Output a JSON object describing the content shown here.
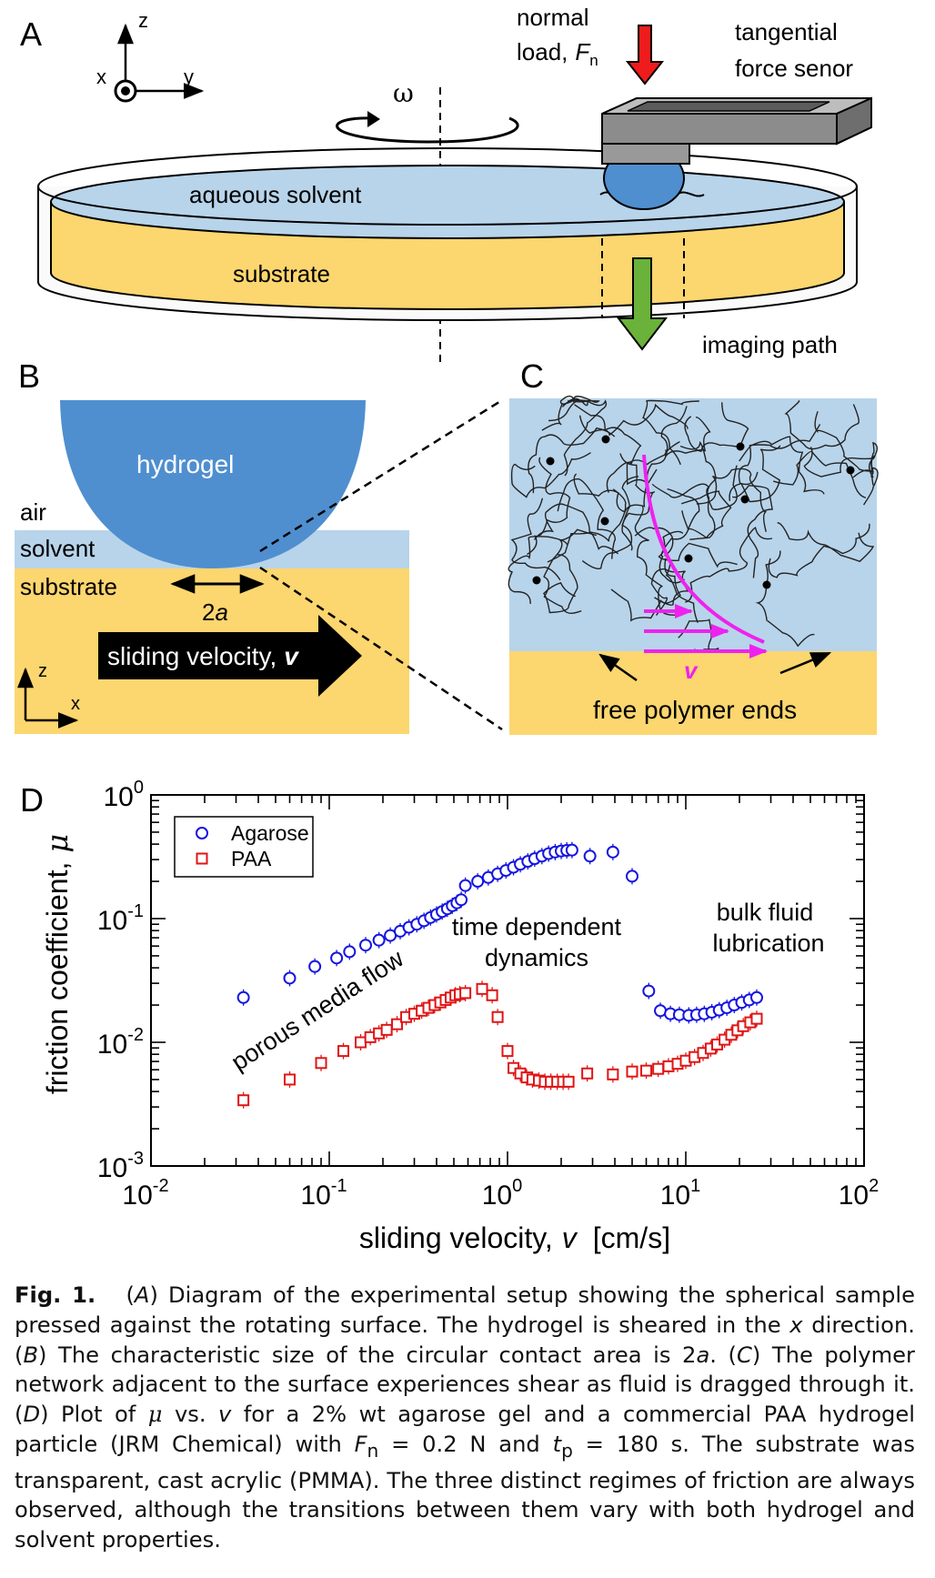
{
  "panels": {
    "a": {
      "letter": "A",
      "axes": {
        "z": "z",
        "x": "x",
        "y": "y"
      },
      "omega": "ω",
      "normal_load": {
        "line1": "normal",
        "line2": "load,",
        "symbol": "F",
        "sub": "n"
      },
      "sensor": {
        "line1": "tangential",
        "line2": "force senor"
      },
      "solvent": "aqueous  solvent",
      "substrate": "substrate",
      "imaging": "imaging  path",
      "colors": {
        "solvent": "#b8d4ea",
        "substrate": "#fcd66f",
        "gel": "#4f8fcf",
        "sensor": "#8c8c8c",
        "load_arrow": "#ee1c1c",
        "imaging_arrow": "#6ab23a"
      }
    },
    "b": {
      "letter": "B",
      "hydrogel": "hydrogel",
      "air": "air",
      "solvent": "solvent",
      "substrate": "substrate",
      "contact": "2",
      "contact_italic": "a",
      "sliding": "sliding velocity,",
      "sliding_symbol": "v",
      "axes": {
        "z": "z",
        "x": "x"
      }
    },
    "c": {
      "letter": "C",
      "velocity": "v",
      "free_ends": "free polymer ends",
      "colors": {
        "flow": "#ee22ee",
        "network": "#222222"
      }
    },
    "d": {
      "letter": "D"
    }
  },
  "chart_data": {
    "type": "scatter",
    "title": "",
    "xlabel": "sliding velocity,",
    "xlabel_symbol": "v",
    "xlabel_unit": "[cm/s]",
    "ylabel": "friction coefficient,",
    "ylabel_symbol": "μ",
    "x_scale": "log",
    "y_scale": "log",
    "xlim": [
      0.01,
      100
    ],
    "ylim": [
      0.001,
      1
    ],
    "x_ticks": [
      {
        "base": "10",
        "exp": "-2"
      },
      {
        "base": "10",
        "exp": "-1"
      },
      {
        "base": "10",
        "exp": "0"
      },
      {
        "base": "10",
        "exp": "1"
      },
      {
        "base": "10",
        "exp": "2"
      }
    ],
    "y_ticks": [
      {
        "base": "10",
        "exp": "-3"
      },
      {
        "base": "10",
        "exp": "-2"
      },
      {
        "base": "10",
        "exp": "-1"
      },
      {
        "base": "10",
        "exp": "0"
      }
    ],
    "grid": false,
    "legend_position": "top-left",
    "annotations": {
      "porous": "porous media flow",
      "time1": "time dependent",
      "time2": "dynamics",
      "bulk1": "bulk fluid",
      "bulk2": "lubrication"
    },
    "series": [
      {
        "name": "Agarose",
        "marker": "circle",
        "color": "#1515e0",
        "points": [
          [
            0.033,
            0.023
          ],
          [
            0.06,
            0.033
          ],
          [
            0.083,
            0.041
          ],
          [
            0.11,
            0.048
          ],
          [
            0.13,
            0.054
          ],
          [
            0.16,
            0.061
          ],
          [
            0.19,
            0.067
          ],
          [
            0.22,
            0.073
          ],
          [
            0.25,
            0.079
          ],
          [
            0.28,
            0.085
          ],
          [
            0.31,
            0.09
          ],
          [
            0.34,
            0.096
          ],
          [
            0.37,
            0.102
          ],
          [
            0.4,
            0.108
          ],
          [
            0.43,
            0.114
          ],
          [
            0.46,
            0.12
          ],
          [
            0.49,
            0.127
          ],
          [
            0.52,
            0.134
          ],
          [
            0.55,
            0.142
          ],
          [
            0.58,
            0.185
          ],
          [
            0.68,
            0.2
          ],
          [
            0.78,
            0.215
          ],
          [
            0.88,
            0.23
          ],
          [
            0.98,
            0.245
          ],
          [
            1.08,
            0.26
          ],
          [
            1.18,
            0.275
          ],
          [
            1.3,
            0.29
          ],
          [
            1.42,
            0.305
          ],
          [
            1.56,
            0.32
          ],
          [
            1.7,
            0.335
          ],
          [
            1.85,
            0.345
          ],
          [
            2.0,
            0.352
          ],
          [
            2.15,
            0.356
          ],
          [
            2.3,
            0.358
          ],
          [
            2.9,
            0.32
          ],
          [
            3.9,
            0.345
          ],
          [
            5.0,
            0.22
          ],
          [
            6.2,
            0.026
          ],
          [
            7.2,
            0.018
          ],
          [
            8.2,
            0.017
          ],
          [
            9.2,
            0.0167
          ],
          [
            10.4,
            0.0165
          ],
          [
            11.5,
            0.0167
          ],
          [
            12.7,
            0.017
          ],
          [
            14.0,
            0.0175
          ],
          [
            15.4,
            0.0182
          ],
          [
            17.0,
            0.019
          ],
          [
            18.7,
            0.02
          ],
          [
            20.6,
            0.021
          ],
          [
            22.7,
            0.022
          ],
          [
            25.0,
            0.023
          ]
        ]
      },
      {
        "name": "PAA",
        "marker": "square",
        "color": "#e01515",
        "points": [
          [
            0.033,
            0.0034
          ],
          [
            0.06,
            0.005
          ],
          [
            0.09,
            0.0068
          ],
          [
            0.12,
            0.0085
          ],
          [
            0.15,
            0.01
          ],
          [
            0.17,
            0.011
          ],
          [
            0.19,
            0.0118
          ],
          [
            0.21,
            0.0126
          ],
          [
            0.24,
            0.014
          ],
          [
            0.27,
            0.016
          ],
          [
            0.3,
            0.017
          ],
          [
            0.33,
            0.018
          ],
          [
            0.36,
            0.019
          ],
          [
            0.39,
            0.02
          ],
          [
            0.42,
            0.021
          ],
          [
            0.45,
            0.022
          ],
          [
            0.48,
            0.023
          ],
          [
            0.51,
            0.024
          ],
          [
            0.54,
            0.0245
          ],
          [
            0.58,
            0.025
          ],
          [
            0.72,
            0.027
          ],
          [
            0.82,
            0.024
          ],
          [
            0.88,
            0.016
          ],
          [
            1.0,
            0.0085
          ],
          [
            1.08,
            0.0062
          ],
          [
            1.18,
            0.0056
          ],
          [
            1.28,
            0.0052
          ],
          [
            1.38,
            0.005
          ],
          [
            1.5,
            0.0049
          ],
          [
            1.62,
            0.0048
          ],
          [
            1.75,
            0.0048
          ],
          [
            1.9,
            0.0048
          ],
          [
            2.05,
            0.0048
          ],
          [
            2.2,
            0.0048
          ],
          [
            2.8,
            0.0056
          ],
          [
            3.9,
            0.0055
          ],
          [
            5.0,
            0.0058
          ],
          [
            6.0,
            0.0059
          ],
          [
            7.0,
            0.0061
          ],
          [
            8.0,
            0.0064
          ],
          [
            9.0,
            0.0067
          ],
          [
            10.0,
            0.0071
          ],
          [
            11.2,
            0.0076
          ],
          [
            12.5,
            0.0082
          ],
          [
            13.8,
            0.0089
          ],
          [
            15.0,
            0.0096
          ],
          [
            16.5,
            0.0105
          ],
          [
            18.0,
            0.0115
          ],
          [
            19.5,
            0.0125
          ],
          [
            21.0,
            0.0135
          ],
          [
            23.0,
            0.0145
          ],
          [
            25.0,
            0.0155
          ]
        ]
      }
    ]
  },
  "caption": {
    "fig_label": "Fig. 1.",
    "part_a_label": "A",
    "part_a_text": "Diagram of the experimental setup showing the spherical sample pressed against the rotating surface. The hydrogel is sheared in the",
    "part_a_x": "x",
    "part_a_text2": "direction.",
    "part_b_label": "B",
    "part_b_text": "The characteristic size of the circular contact area is 2",
    "part_b_a": "a",
    "part_c_label": "C",
    "part_c_text": "The polymer network adjacent to the surface experiences shear as fluid is dragged through it.",
    "part_d_label": "D",
    "part_d_text1": "Plot of",
    "mu": "μ",
    "part_d_vs": "vs.",
    "v": "v",
    "part_d_text2": "for a 2% wt agarose gel and a commercial PAA hydrogel particle (JRM Chemical) with",
    "F": "F",
    "F_sub": "n",
    "F_value": "= 0.2 N and",
    "t": "t",
    "t_sub": "p",
    "t_value": "= 180 s. The substrate was transparent, cast acrylic (PMMA). The three distinct regimes of friction are always observed, although the transitions between them vary with both hydrogel and solvent properties."
  }
}
